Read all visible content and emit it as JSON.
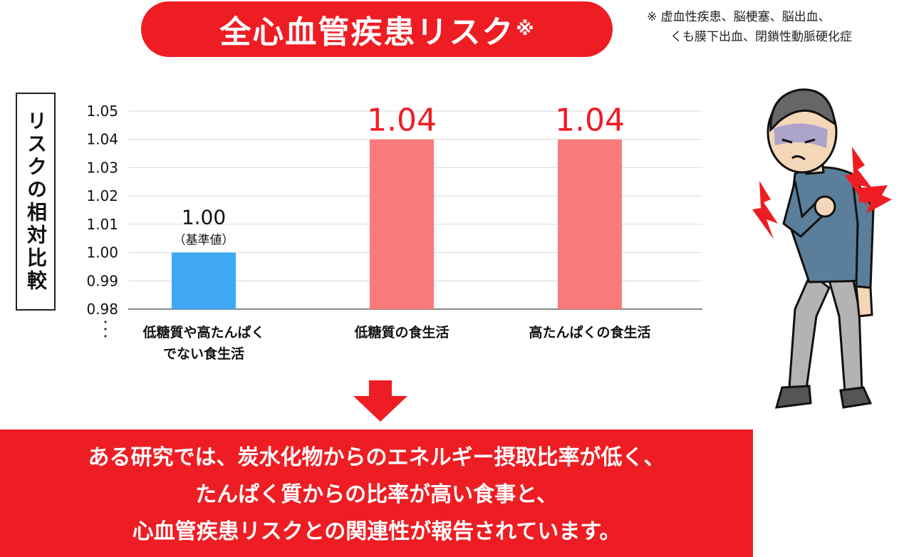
{
  "title": {
    "text": "全心血管疾患リスク",
    "mark": "※"
  },
  "footnote": {
    "line1": "※ 虚血性疾患、脳梗塞、脳出血、",
    "line2": "くも膜下出血、閉鎖性動脈硬化症"
  },
  "colors": {
    "accent": "#ee1d23",
    "baseline_bar": "#3fa9f5",
    "compare_bar": "#fb7a7a"
  },
  "chart_data": {
    "type": "bar",
    "ylabel": "リスクの相対比較",
    "ylim": [
      0.98,
      1.05
    ],
    "yticks": [
      "1.05",
      "1.04",
      "1.03",
      "1.02",
      "1.01",
      "1.00",
      "0.99",
      "0.98"
    ],
    "axis_break": true,
    "grid": true,
    "categories": [
      [
        "低糖質や高たんぱく",
        "でない食生活"
      ],
      [
        "低糖質の食生活"
      ],
      [
        "高たんぱくの食生活"
      ]
    ],
    "values": [
      1.0,
      1.04,
      1.04
    ],
    "value_labels": [
      "1.00",
      "1.04",
      "1.04"
    ],
    "baseline_note": "（基準値）"
  },
  "summary": {
    "line1": "ある研究では、炭水化物からのエネルギー摂取比率が低く、",
    "line2": "たんぱく質からの比率が高い食事と、",
    "line3": "心血管疾患リスクとの関連性が報告されています。"
  },
  "illustration_icon": "man-chest-pain-illustration",
  "arrow_icon": "down-arrow-icon"
}
